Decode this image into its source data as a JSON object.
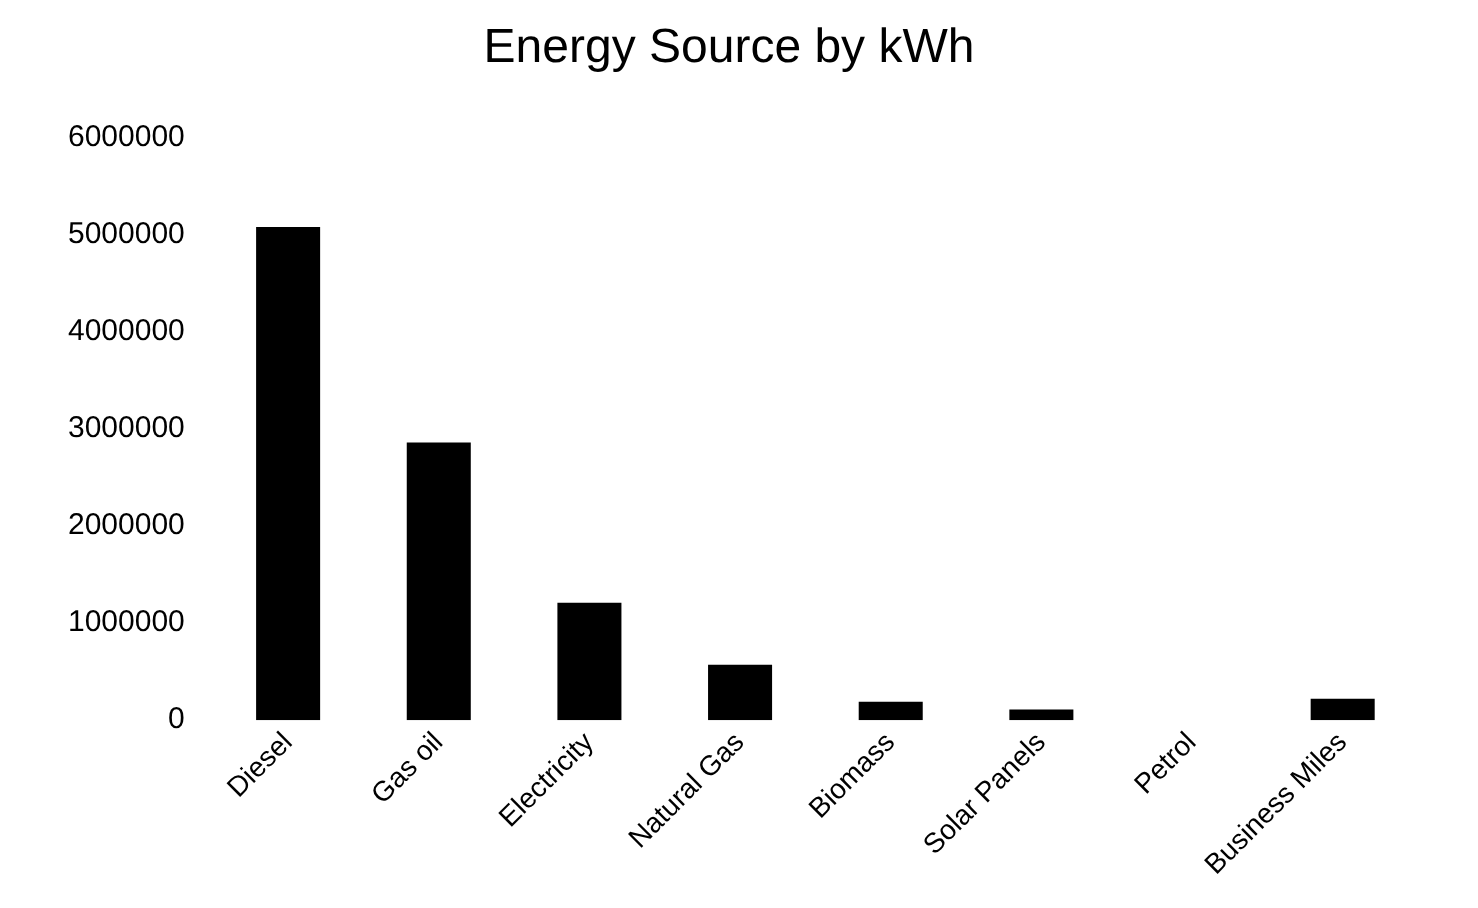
{
  "chart_data": {
    "type": "bar",
    "title": "Energy Source by kWh",
    "categories": [
      "Diesel",
      "Gas oil",
      "Electricity",
      "Natural Gas",
      "Biomass",
      "Solar Panels",
      "Petrol",
      "Business Miles"
    ],
    "values": [
      5080000,
      2860000,
      1210000,
      570000,
      190000,
      110000,
      0,
      220000
    ],
    "color": "#000000",
    "ylim": [
      0,
      6000000
    ],
    "yticks": [
      0,
      1000000,
      2000000,
      3000000,
      4000000,
      5000000,
      6000000
    ],
    "grid": false,
    "legend": false
  }
}
